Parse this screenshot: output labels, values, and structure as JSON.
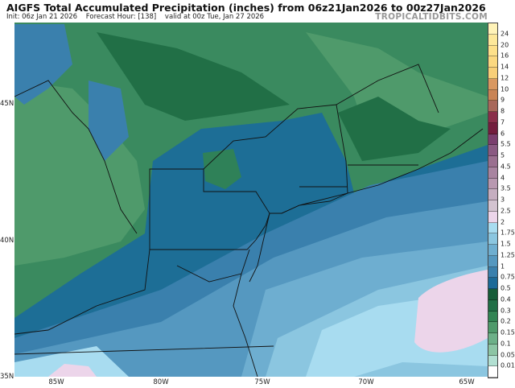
{
  "header": {
    "title": "AIGFS Total Accumulated Precipitation (inches) from 06z21Jan2026 to 00z27Jan2026",
    "init": "Init: 06z Jan 21 2026",
    "forecast_hour": "Forecast Hour: [138]",
    "valid": "valid at 00z Tue, Jan 27 2026",
    "brand": "TROPICALTIDBITS.COM"
  },
  "axes": {
    "lat_labels": [
      "45N",
      "40N",
      "35N"
    ],
    "lon_labels": [
      "85W",
      "80W",
      "75W",
      "70W",
      "65W"
    ]
  },
  "colorbar": {
    "labels": [
      "24",
      "20",
      "16",
      "14",
      "12",
      "10",
      "9",
      "8",
      "7",
      "6",
      "5.5",
      "5",
      "4.5",
      "4",
      "3.5",
      "3",
      "2.5",
      "2",
      "1.75",
      "1.5",
      "1.25",
      "1",
      "0.75",
      "0.5",
      "0.4",
      "0.3",
      "0.2",
      "0.15",
      "0.1",
      "0.05",
      "0.01"
    ],
    "colors": [
      "#fff3b8",
      "#fde89a",
      "#fde08a",
      "#fbd880",
      "#f8cf78",
      "#d99860",
      "#c98455",
      "#a8685a",
      "#8a2f4a",
      "#731e3e",
      "#7a3f6e",
      "#8a5a82",
      "#9a7090",
      "#a884a0",
      "#b898b0",
      "#c5aec0",
      "#d3c3d0",
      "#ecd5ea",
      "#a8dcf0",
      "#8bc6e0",
      "#6eaed0",
      "#5598c0",
      "#3a80ad",
      "#1c6a98",
      "#165c38",
      "#216f46",
      "#328453",
      "#4f9a6b",
      "#6db088",
      "#8cc5a4",
      "#b2e0d2",
      "#ffffff"
    ]
  },
  "legend_colors": {
    "green_0.3": "#2f8158",
    "blue_0.75": "#1d6e96",
    "blue_1": "#3a80ad",
    "blue_1.25": "#5598c0",
    "blue_1.5": "#6eaed0",
    "blue_1.75": "#8bc6e0",
    "blue_2": "#a8dcf0",
    "pink_2.5": "#ecd5ea"
  }
}
